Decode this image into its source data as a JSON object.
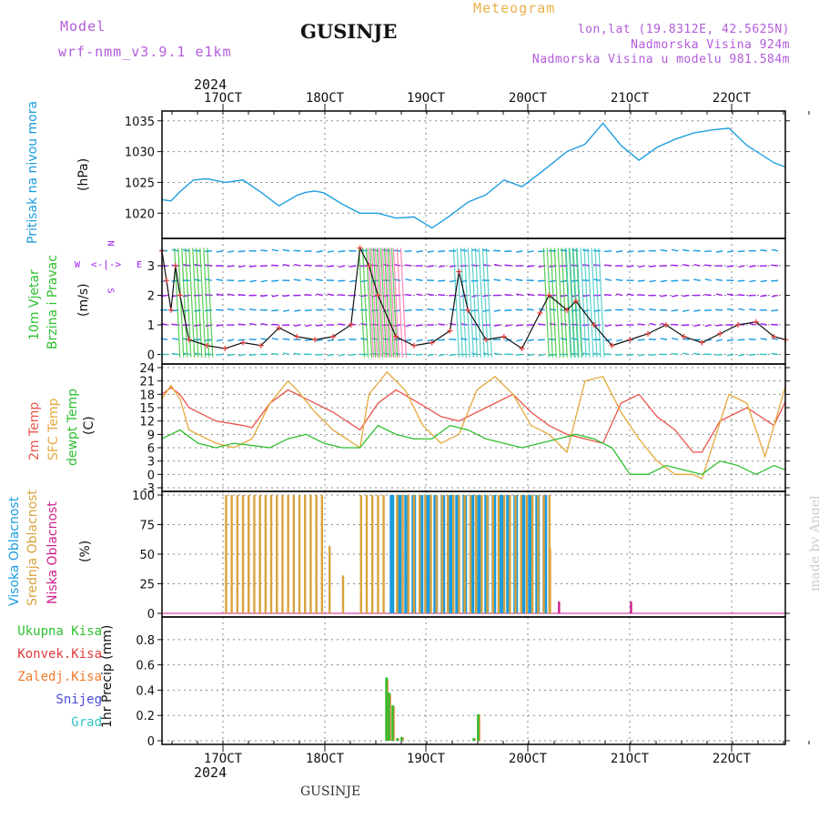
{
  "header": {
    "model_label": "Model",
    "model_name": "wrf-nmm_v3.9.1 e1km",
    "station_title": "GUSINJE",
    "meteogram_label": "Meteogram",
    "lonlat": "lon,lat (19.8312E, 42.5625N)",
    "altitude": "Nadmorska Visina 924m",
    "model_altitude": "Nadmorska Visina u modelu 981.584m"
  },
  "footer": {
    "station": "GUSINJE",
    "watermark": "made by Angel"
  },
  "colors": {
    "pressure": "#1f9fe0",
    "temp2m": "#e8554a",
    "sfc": "#e4a93d",
    "dewpt": "#2fbf2f",
    "high": "#1a9be0",
    "mid": "#d9a23c",
    "low": "#cc1f8f",
    "total": "#2fbf2f",
    "conv": "#e33b3b",
    "frozen": "#f07a2a",
    "snow": "#4a4adf",
    "grad": "#35c4c4",
    "wind_dir": "#a020f0",
    "grid": "#888888"
  },
  "axis": {
    "top_year": "2024",
    "bottom_year": "2024",
    "day_labels": [
      "17OCT",
      "18OCT",
      "19OCT",
      "20OCT",
      "21OCT",
      "22OCT"
    ]
  },
  "chart_data": [
    {
      "type": "line",
      "name": "pressure",
      "ylabel": [
        "Pritisak na nivou mora",
        "(hPa)"
      ],
      "yticks": [
        1020,
        1025,
        1030,
        1035
      ],
      "ylim": [
        1016.5,
        1036
      ],
      "x_days": [
        0,
        0.1,
        0.2,
        0.35,
        0.5,
        0.7,
        0.9,
        1.1,
        1.3,
        1.5,
        1.6,
        1.7,
        1.8,
        2.0,
        2.2,
        2.4,
        2.6,
        2.8,
        3.0,
        3.2,
        3.4,
        3.6,
        3.8,
        4.0,
        4.2,
        4.5,
        4.7,
        4.9,
        5.1,
        5.3,
        5.5,
        5.7,
        5.9,
        6.1,
        6.3,
        6.5,
        6.8,
        6.93
      ],
      "values": [
        1022.2,
        1022.0,
        1023.5,
        1025.4,
        1025.6,
        1025.0,
        1025.4,
        1023.4,
        1021.2,
        1022.9,
        1023.4,
        1023.6,
        1023.3,
        1021.5,
        1020.0,
        1020.0,
        1019.2,
        1019.4,
        1017.6,
        1019.6,
        1021.8,
        1023.0,
        1025.4,
        1024.3,
        1026.5,
        1030.0,
        1031.2,
        1034.6,
        1031.0,
        1028.6,
        1030.7,
        1032.0,
        1033.0,
        1033.5,
        1033.8,
        1031.0,
        1028.2,
        1027.5
      ]
    },
    {
      "type": "line",
      "name": "wind",
      "ylabel": [
        "10m Vjetar",
        "Brzina i Pravac",
        "(m/s)"
      ],
      "compass": [
        "N",
        "S",
        "W",
        "E"
      ],
      "yticks": [
        0,
        1,
        2,
        3
      ],
      "ylim": [
        -0.2,
        3.8
      ],
      "x_days": [
        0,
        0.05,
        0.1,
        0.15,
        0.2,
        0.3,
        0.5,
        0.7,
        0.9,
        1.1,
        1.3,
        1.5,
        1.7,
        1.9,
        2.1,
        2.2,
        2.3,
        2.4,
        2.6,
        2.8,
        3.0,
        3.2,
        3.3,
        3.4,
        3.6,
        3.8,
        4.0,
        4.2,
        4.3,
        4.5,
        4.6,
        4.8,
        5.0,
        5.2,
        5.4,
        5.6,
        5.8,
        6.0,
        6.2,
        6.4,
        6.6,
        6.8,
        6.93
      ],
      "values": [
        3.5,
        2.5,
        1.5,
        3.0,
        2.0,
        0.5,
        0.3,
        0.2,
        0.4,
        0.3,
        0.9,
        0.6,
        0.5,
        0.6,
        1.0,
        3.6,
        3.0,
        2.0,
        0.6,
        0.3,
        0.4,
        0.8,
        2.8,
        1.5,
        0.5,
        0.6,
        0.2,
        1.4,
        2.0,
        1.5,
        1.8,
        1.0,
        0.3,
        0.5,
        0.7,
        1.0,
        0.6,
        0.4,
        0.7,
        1.0,
        1.1,
        0.6,
        0.5
      ]
    },
    {
      "type": "line",
      "name": "temperature",
      "ylabel": [
        "2m Temp",
        "SFC Temp",
        "dewpt Temp",
        "(C)"
      ],
      "yticks": [
        -3,
        0,
        3,
        6,
        9,
        12,
        15,
        18,
        21,
        24
      ],
      "ylim": [
        -3,
        24
      ],
      "series": [
        {
          "name": "2m Temp",
          "x_days": [
            0,
            0.1,
            0.2,
            0.3,
            0.6,
            0.9,
            1.0,
            1.2,
            1.4,
            1.6,
            1.9,
            2.2,
            2.4,
            2.6,
            2.9,
            3.1,
            3.3,
            3.6,
            3.9,
            4.1,
            4.3,
            4.5,
            4.9,
            5.1,
            5.3,
            5.5,
            5.7,
            5.9,
            6.0,
            6.2,
            6.5,
            6.8,
            6.93
          ],
          "values": [
            18,
            19.5,
            18,
            15,
            12,
            11,
            10.5,
            16,
            19,
            17,
            14,
            10,
            16,
            19,
            15.5,
            13,
            12,
            15,
            18,
            14,
            11,
            9,
            7,
            16,
            18,
            13,
            10,
            5,
            5,
            12,
            15,
            11,
            16.5
          ]
        },
        {
          "name": "SFC Temp",
          "x_days": [
            0,
            0.1,
            0.2,
            0.3,
            0.6,
            0.8,
            1.0,
            1.2,
            1.4,
            1.5,
            1.7,
            1.9,
            2.2,
            2.3,
            2.5,
            2.7,
            2.9,
            3.1,
            3.3,
            3.5,
            3.7,
            3.9,
            4.1,
            4.3,
            4.5,
            4.7,
            4.9,
            5.1,
            5.3,
            5.5,
            5.7,
            5.9,
            6.0,
            6.3,
            6.5,
            6.7,
            6.93
          ],
          "values": [
            17,
            20,
            17,
            10,
            7,
            6,
            8,
            16,
            21,
            19,
            14,
            10,
            6,
            18,
            23,
            19,
            11,
            7,
            9,
            19,
            22,
            18,
            11,
            9,
            5,
            21,
            22,
            14,
            8,
            3,
            0,
            0,
            -1,
            18,
            16,
            4,
            20
          ]
        },
        {
          "name": "dewpt Temp",
          "x_days": [
            0,
            0.2,
            0.4,
            0.6,
            0.8,
            1.0,
            1.2,
            1.4,
            1.6,
            1.8,
            2.0,
            2.2,
            2.4,
            2.6,
            2.8,
            3.0,
            3.2,
            3.4,
            3.6,
            3.8,
            4.0,
            4.2,
            4.4,
            4.6,
            4.8,
            5.0,
            5.2,
            5.4,
            5.6,
            5.8,
            6.0,
            6.2,
            6.4,
            6.6,
            6.8,
            6.93
          ],
          "values": [
            8,
            10,
            7,
            6,
            7,
            6.5,
            6,
            8,
            9,
            7,
            6,
            6,
            11,
            9,
            8,
            8,
            11,
            10,
            8,
            7,
            6,
            7,
            8,
            9,
            8,
            6,
            0,
            0,
            2,
            1,
            0,
            3,
            2,
            0,
            2,
            1
          ]
        }
      ]
    },
    {
      "type": "bar",
      "name": "cloud_cover",
      "ylabel": [
        "Visoka Oblacnost",
        "Srednja Oblacnost",
        "Niska Oblacnost",
        "(%)"
      ],
      "yticks": [
        0,
        25,
        50,
        75,
        100
      ],
      "ylim": [
        0,
        100
      ],
      "series": [
        {
          "name": "Srednja Oblacnost",
          "x_start": 0.7,
          "x_end": 1.8,
          "value": 100
        },
        {
          "name": "Srednja Oblacnost",
          "x_start": 2.2,
          "x_end": 2.5,
          "value": 100
        },
        {
          "name": "Visoka Oblacnost",
          "x_start": 2.5,
          "x_end": 4.3,
          "value": 100
        },
        {
          "name": "Srednja Oblacnost",
          "x_start": 2.6,
          "x_end": 4.3,
          "value": 100
        }
      ],
      "notable_values": [
        {
          "x": 1.85,
          "v": 57
        },
        {
          "x": 2.0,
          "v": 32
        },
        {
          "x": 2.2,
          "v": 17
        },
        {
          "x": 4.3,
          "v": 55
        },
        {
          "x": 4.4,
          "v": 10
        },
        {
          "x": 5.2,
          "v": 10
        }
      ]
    },
    {
      "type": "bar",
      "name": "precipitation",
      "ylabel": [
        "1hr Precip (mm)"
      ],
      "legend": [
        "Ukupna Kisa",
        "Konvek.Kisa",
        "Zaledj.Kisa",
        "Snijeg",
        "Grad"
      ],
      "yticks": [
        0,
        0.2,
        0.4,
        0.6,
        0.8
      ],
      "ylim": [
        0,
        0.95
      ],
      "x_days": [
        2.48,
        2.51,
        2.55,
        2.6,
        2.65,
        3.45,
        3.5
      ],
      "values": [
        0.5,
        0.38,
        0.28,
        0.02,
        0.03,
        0.02,
        0.21
      ]
    }
  ]
}
